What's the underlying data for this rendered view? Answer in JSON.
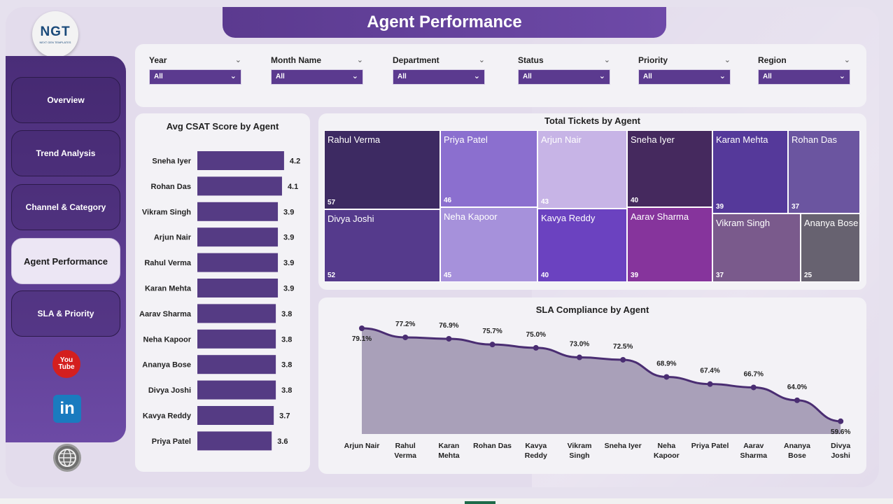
{
  "header": {
    "title": "Agent Performance"
  },
  "logo": {
    "text": "NGT",
    "subtitle": "NEXT GEN TEMPLATES"
  },
  "nav": [
    {
      "label": "Overview",
      "active": false
    },
    {
      "label": "Trend Analysis",
      "active": false
    },
    {
      "label": "Channel & Category",
      "active": false
    },
    {
      "label": "Agent Performance",
      "active": true
    },
    {
      "label": "SLA & Priority",
      "active": false
    }
  ],
  "social": {
    "youtube_line1": "You",
    "youtube_line2": "Tube",
    "linkedin": "in"
  },
  "filters": [
    {
      "label": "Year",
      "value": "All"
    },
    {
      "label": "Month Name",
      "value": "All"
    },
    {
      "label": "Department",
      "value": "All"
    },
    {
      "label": "Status",
      "value": "All"
    },
    {
      "label": "Priority",
      "value": "All"
    },
    {
      "label": "Region",
      "value": "All"
    }
  ],
  "chart_data": [
    {
      "type": "bar",
      "orientation": "horizontal",
      "title": "Avg CSAT Score by Agent",
      "categories": [
        "Sneha Iyer",
        "Rohan Das",
        "Vikram Singh",
        "Arjun Nair",
        "Rahul Verma",
        "Karan Mehta",
        "Aarav Sharma",
        "Neha Kapoor",
        "Ananya Bose",
        "Divya Joshi",
        "Kavya Reddy",
        "Priya Patel"
      ],
      "values": [
        4.2,
        4.1,
        3.9,
        3.9,
        3.9,
        3.9,
        3.8,
        3.8,
        3.8,
        3.8,
        3.7,
        3.6
      ],
      "color": "#553b84"
    },
    {
      "type": "treemap",
      "title": "Total Tickets by Agent",
      "items": [
        {
          "name": "Rahul Verma",
          "value": 57,
          "color": "#3d2a62"
        },
        {
          "name": "Divya Joshi",
          "value": 52,
          "color": "#553a8c"
        },
        {
          "name": "Priya Patel",
          "value": 46,
          "color": "#8b6fcf"
        },
        {
          "name": "Neha Kapoor",
          "value": 45,
          "color": "#a691db"
        },
        {
          "name": "Arjun Nair",
          "value": 43,
          "color": "#c7b4e6"
        },
        {
          "name": "Kavya Reddy",
          "value": 40,
          "color": "#6b42c0"
        },
        {
          "name": "Sneha Iyer",
          "value": 40,
          "color": "#45295e"
        },
        {
          "name": "Aarav Sharma",
          "value": 39,
          "color": "#86349c"
        },
        {
          "name": "Karan Mehta",
          "value": 39,
          "color": "#55399a"
        },
        {
          "name": "Rohan Das",
          "value": 37,
          "color": "#6b55a0"
        },
        {
          "name": "Vikram Singh",
          "value": 37,
          "color": "#7a5a8c"
        },
        {
          "name": "Ananya Bose",
          "value": 25,
          "color": "#676270"
        }
      ]
    },
    {
      "type": "area",
      "title": "SLA Compliance by Agent",
      "categories": [
        "Arjun Nair",
        "Rahul Verma",
        "Karan Mehta",
        "Rohan Das",
        "Kavya Reddy",
        "Vikram Singh",
        "Sneha Iyer",
        "Neha Kapoor",
        "Priya Patel",
        "Aarav Sharma",
        "Ananya Bose",
        "Divya Joshi"
      ],
      "values": [
        79.1,
        77.2,
        76.9,
        75.7,
        75.0,
        73.0,
        72.5,
        68.9,
        67.4,
        66.7,
        64.0,
        59.6
      ],
      "labels": [
        "79.1%",
        "77.2%",
        "76.9%",
        "75.7%",
        "75.0%",
        "73.0%",
        "72.5%",
        "68.9%",
        "67.4%",
        "66.7%",
        "64.0%",
        "59.6%"
      ],
      "line_color": "#4a2d72",
      "fill_color": "#a9a0b9"
    }
  ]
}
